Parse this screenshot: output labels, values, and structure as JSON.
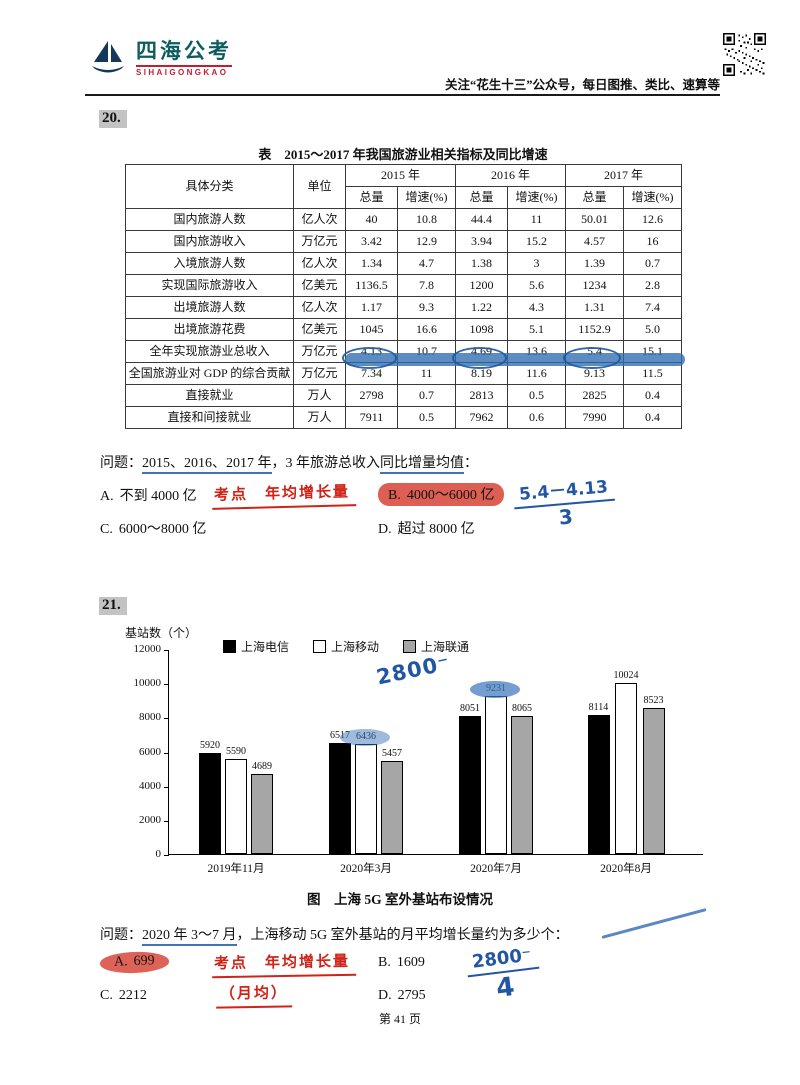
{
  "header": {
    "brand_name": "四海公考",
    "brand_sub": "SIHAIGONGKAO",
    "slogan": "关注“花生十三”公众号，每日图推、类比、速算等"
  },
  "q20": {
    "number": "20.",
    "table_title": "表　2015～2017 年我国旅游业相关指标及同比增速",
    "table": {
      "header": {
        "category": "具体分类",
        "unit": "单位",
        "years": [
          "2015 年",
          "2016 年",
          "2017 年"
        ],
        "total": "总量",
        "growth": "增速(%)"
      },
      "rows": [
        {
          "label": "国内旅游人数",
          "unit": "亿人次",
          "values": [
            "40",
            "10.8",
            "44.4",
            "11",
            "50.01",
            "12.6"
          ]
        },
        {
          "label": "国内旅游收入",
          "unit": "万亿元",
          "values": [
            "3.42",
            "12.9",
            "3.94",
            "15.2",
            "4.57",
            "16"
          ]
        },
        {
          "label": "入境旅游人数",
          "unit": "亿人次",
          "values": [
            "1.34",
            "4.7",
            "1.38",
            "3",
            "1.39",
            "0.7"
          ]
        },
        {
          "label": "实现国际旅游收入",
          "unit": "亿美元",
          "values": [
            "1136.5",
            "7.8",
            "1200",
            "5.6",
            "1234",
            "2.8"
          ]
        },
        {
          "label": "出境旅游人数",
          "unit": "亿人次",
          "values": [
            "1.17",
            "9.3",
            "1.22",
            "4.3",
            "1.31",
            "7.4"
          ]
        },
        {
          "label": "出境旅游花费",
          "unit": "亿美元",
          "values": [
            "1045",
            "16.6",
            "1098",
            "5.1",
            "1152.9",
            "5.0"
          ]
        },
        {
          "label": "全年实现旅游业总收入",
          "unit": "万亿元",
          "values": [
            "4.13",
            "10.7",
            "4.69",
            "13.6",
            "5.4",
            "15.1"
          ],
          "highlight": true
        },
        {
          "label": "全国旅游业对 GDP 的综合贡献",
          "unit": "万亿元",
          "values": [
            "7.34",
            "11",
            "8.19",
            "11.6",
            "9.13",
            "11.5"
          ]
        },
        {
          "label": "直接就业",
          "unit": "万人",
          "values": [
            "2798",
            "0.7",
            "2813",
            "0.5",
            "2825",
            "0.4"
          ]
        },
        {
          "label": "直接和间接就业",
          "unit": "万人",
          "values": [
            "7911",
            "0.5",
            "7962",
            "0.6",
            "7990",
            "0.4"
          ]
        }
      ]
    },
    "question": {
      "prefix": "问题：",
      "u1": "2015、2016、2017 年",
      "mid": "，3 年旅游总收入",
      "u2": "同比增量均值",
      "suffix": "："
    },
    "options": [
      {
        "label": "A.",
        "text": "不到 4000 亿"
      },
      {
        "label": "B.",
        "text": "4000～6000 亿",
        "highlight": true
      },
      {
        "label": "C.",
        "text": "6000～8000 亿"
      },
      {
        "label": "D.",
        "text": "超过 8000 亿"
      }
    ],
    "handwriting": {
      "red_note": "考点　年均增长量",
      "blue_numerator": "5.4－4.13",
      "blue_denominator": "3"
    }
  },
  "q21": {
    "number": "21.",
    "chart_data": {
      "type": "bar",
      "title": "图　上海 5G 室外基站布设情况",
      "ylabel": "基站数（个）",
      "categories": [
        "2019年11月",
        "2020年3月",
        "2020年7月",
        "2020年8月"
      ],
      "series": [
        {
          "name": "上海电信",
          "color": "#000000",
          "values": [
            5920,
            6517,
            8051,
            8114
          ]
        },
        {
          "name": "上海移动",
          "color": "#ffffff",
          "values": [
            5590,
            6436,
            9231,
            10024
          ]
        },
        {
          "name": "上海联通",
          "color": "#a6a6a6",
          "values": [
            4689,
            5457,
            8065,
            8523
          ]
        }
      ],
      "ylim": [
        0,
        12000
      ],
      "ytick_step": 2000,
      "grid": false,
      "legend_position": "top"
    },
    "chart_title": "图　上海 5G 室外基站布设情况",
    "question": {
      "prefix": "问题：",
      "u1": "2020 年 3～7 月",
      "mid": "，上海移动 5G 室外基站的",
      "u2": "月平均增长量",
      "suffix": "约为多少个："
    },
    "options": [
      {
        "label": "A.",
        "text": "699",
        "highlight": true
      },
      {
        "label": "B.",
        "text": "1609"
      },
      {
        "label": "C.",
        "text": "2212"
      },
      {
        "label": "D.",
        "text": "2795"
      }
    ],
    "handwriting": {
      "red_note": "考点　年均增长量",
      "red_note2": "（月均）",
      "chart_note": "2800⁻",
      "blue_numerator": "2800⁻",
      "blue_denominator": "4"
    }
  },
  "footer": {
    "page_label": "第 41 页"
  }
}
